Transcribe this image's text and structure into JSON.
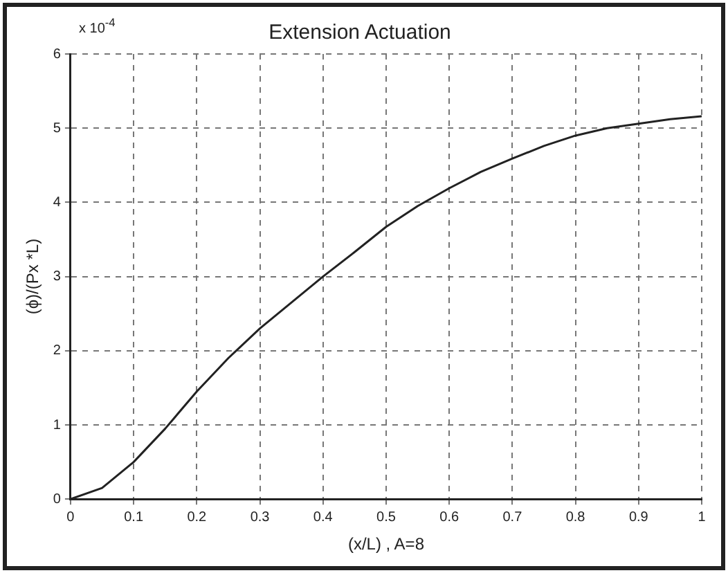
{
  "chart_data": {
    "type": "line",
    "title": "Extension Actuation",
    "xlabel": "(x/L) , A=8",
    "ylabel": "(ϕ)/(Px *L)",
    "annotations": [
      "x 10$^{-4}$"
    ],
    "x": [
      0,
      0.05,
      0.1,
      0.15,
      0.2,
      0.25,
      0.3,
      0.35,
      0.4,
      0.45,
      0.5,
      0.55,
      0.6,
      0.65,
      0.7,
      0.75,
      0.8,
      0.85,
      0.9,
      0.95,
      1
    ],
    "series": [
      {
        "color": "#222222",
        "values": [
          0,
          0.15,
          0.5,
          0.95,
          1.45,
          1.9,
          2.3,
          2.65,
          3.0,
          3.33,
          3.67,
          3.95,
          4.19,
          4.41,
          4.59,
          4.76,
          4.9,
          5.0,
          5.06,
          5.12,
          5.16
        ]
      }
    ],
    "xlim": [
      0,
      1
    ],
    "xticks": [
      0,
      0.1,
      0.2,
      0.3,
      0.4,
      0.5,
      0.6,
      0.7,
      0.8,
      0.9,
      1
    ],
    "ylim": [
      0,
      6
    ],
    "yticks": [
      0,
      1,
      2,
      3,
      4,
      5,
      6
    ],
    "grid": true,
    "legend": false,
    "marker": "none",
    "line_style": "solid"
  }
}
